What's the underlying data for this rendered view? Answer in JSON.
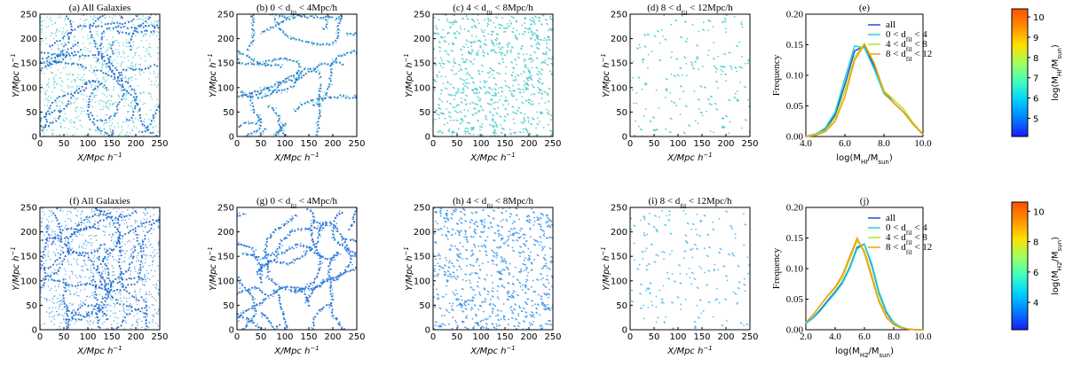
{
  "chart_data": [
    {
      "type": "map",
      "title": [
        "(a) All Galaxies"
      ],
      "xlabel": [
        "X/Mpc h",
        "−1"
      ],
      "ylabel": [
        "Y/Mpc h",
        "−1"
      ],
      "xlim": [
        0,
        250
      ],
      "ylim": [
        0,
        250
      ],
      "xticks": [
        0,
        50,
        100,
        150,
        200,
        250
      ],
      "yticks": [
        0,
        50,
        100,
        150,
        200,
        250
      ],
      "color": "#3cc4c8"
    },
    {
      "type": "map",
      "title": [
        "(b) 0 <  d",
        "fil",
        "  < 4Mpc/h"
      ],
      "xlabel": [
        "X/Mpc h",
        "−1"
      ],
      "ylabel": [
        "Y/Mpc h",
        "−1"
      ],
      "xlim": [
        0,
        250
      ],
      "ylim": [
        0,
        250
      ],
      "xticks": [
        0,
        50,
        100,
        150,
        200,
        250
      ],
      "yticks": [
        0,
        50,
        100,
        150,
        200,
        250
      ],
      "color": "#3cc4c8"
    },
    {
      "type": "map",
      "title": [
        "(c) 4 <  d",
        "fil",
        "  < 8Mpc/h"
      ],
      "xlabel": [
        "X/Mpc h",
        "−1"
      ],
      "ylabel": [
        "Y/Mpc h",
        "−1"
      ],
      "xlim": [
        0,
        250
      ],
      "ylim": [
        0,
        250
      ],
      "xticks": [
        0,
        50,
        100,
        150,
        200,
        250
      ],
      "yticks": [
        0,
        50,
        100,
        150,
        200,
        250
      ],
      "color": "#3cc4c8"
    },
    {
      "type": "map",
      "title": [
        "(d) 8 <  d",
        "fil",
        "  < 12Mpc/h"
      ],
      "xlabel": [
        "X/Mpc h",
        "−1"
      ],
      "ylabel": [
        "Y/Mpc h",
        "−1"
      ],
      "xlim": [
        0,
        250
      ],
      "ylim": [
        0,
        250
      ],
      "xticks": [
        0,
        50,
        100,
        150,
        200,
        250
      ],
      "yticks": [
        0,
        50,
        100,
        150,
        200,
        250
      ],
      "color": "#3cc4c8"
    },
    {
      "type": "line",
      "title": [
        "(e)"
      ],
      "xlabel": [
        "log(M",
        "HI",
        "/M",
        "sun",
        ")"
      ],
      "ylabel": [
        "Frequency"
      ],
      "x": [
        4,
        4.5,
        5,
        5.5,
        6,
        6.5,
        7,
        7.5,
        8,
        8.5,
        9,
        9.5,
        10
      ],
      "series": [
        {
          "name": [
            "all"
          ],
          "color": "#1f4fd8",
          "values": [
            0,
            0.004,
            0.012,
            0.035,
            0.085,
            0.14,
            0.148,
            0.115,
            0.075,
            0.055,
            0.04,
            0.02,
            0.003
          ]
        },
        {
          "name": [
            "0 <  d",
            "fil",
            "  < 4"
          ],
          "color": "#22d3d3",
          "values": [
            0,
            0.004,
            0.014,
            0.04,
            0.095,
            0.148,
            0.145,
            0.11,
            0.07,
            0.055,
            0.04,
            0.02,
            0.003
          ]
        },
        {
          "name": [
            "4 <  d",
            "fil",
            "  < 8"
          ],
          "color": "#b5e61d",
          "values": [
            0,
            0.003,
            0.01,
            0.03,
            0.075,
            0.13,
            0.152,
            0.12,
            0.075,
            0.06,
            0.045,
            0.022,
            0.004
          ]
        },
        {
          "name": [
            "8 <  d",
            "fil",
            "  < 12"
          ],
          "color": "#f39c12",
          "values": [
            0,
            0.002,
            0.008,
            0.025,
            0.065,
            0.125,
            0.15,
            0.12,
            0.072,
            0.055,
            0.04,
            0.02,
            0.003
          ]
        }
      ],
      "xlim": [
        4,
        10
      ],
      "ylim": [
        0,
        0.2
      ],
      "xticks": [
        {
          "value": 4,
          "label": "4.0"
        },
        {
          "value": 6,
          "label": "6.0"
        },
        {
          "value": 8,
          "label": "8.0"
        },
        {
          "value": 10,
          "label": "10.0"
        }
      ],
      "yticks": [
        {
          "value": 0,
          "label": "0.00"
        },
        0.05,
        {
          "value": 0.1,
          "label": "0.10"
        },
        0.15,
        {
          "value": 0.2,
          "label": "0.20"
        }
      ],
      "legend": "upper right"
    },
    {
      "type": "colorbar",
      "label": [
        "log(M",
        "HI",
        "/M",
        "sun",
        ")"
      ],
      "ylim": [
        4.1,
        10.4
      ],
      "yticks": [
        5,
        6,
        7,
        8,
        9,
        10
      ],
      "colors": [
        "#1a1aff",
        "#0080ff",
        "#00d0ff",
        "#40ffc0",
        "#a0ff60",
        "#ffe000",
        "#ff9000",
        "#ff5000"
      ]
    },
    {
      "type": "map",
      "title": [
        "(f) All Galaxies"
      ],
      "xlabel": [
        "X/Mpc h",
        "−1"
      ],
      "ylabel": [
        "Y/Mpc h",
        "−1"
      ],
      "xlim": [
        0,
        250
      ],
      "ylim": [
        0,
        250
      ],
      "xticks": [
        0,
        50,
        100,
        150,
        200,
        250
      ],
      "yticks": [
        0,
        50,
        100,
        150,
        200,
        250
      ],
      "color": "#2e8fe8"
    },
    {
      "type": "map",
      "title": [
        "(g) 0 <  d",
        "fil",
        "  < 4Mpc/h"
      ],
      "xlabel": [
        "X/Mpc h",
        "−1"
      ],
      "ylabel": [
        "Y/Mpc h",
        "−1"
      ],
      "xlim": [
        0,
        250
      ],
      "ylim": [
        0,
        250
      ],
      "xticks": [
        0,
        50,
        100,
        150,
        200,
        250
      ],
      "yticks": [
        0,
        50,
        100,
        150,
        200,
        250
      ],
      "color": "#2e8fe8"
    },
    {
      "type": "map",
      "title": [
        "(h) 4 <  d",
        "fil",
        "  < 8Mpc/h"
      ],
      "xlabel": [
        "X/Mpc h",
        "−1"
      ],
      "ylabel": [
        "Y/Mpc h",
        "−1"
      ],
      "xlim": [
        0,
        250
      ],
      "ylim": [
        0,
        250
      ],
      "xticks": [
        0,
        50,
        100,
        150,
        200,
        250
      ],
      "yticks": [
        0,
        50,
        100,
        150,
        200,
        250
      ],
      "color": "#2e8fe8"
    },
    {
      "type": "map",
      "title": [
        "(i) 8 <  d",
        "fil",
        "  < 12Mpc/h"
      ],
      "xlabel": [
        "X/Mpc h",
        "−1"
      ],
      "ylabel": [
        "Y/Mpc h",
        "−1"
      ],
      "xlim": [
        0,
        250
      ],
      "ylim": [
        0,
        250
      ],
      "xticks": [
        0,
        50,
        100,
        150,
        200,
        250
      ],
      "yticks": [
        0,
        50,
        100,
        150,
        200,
        250
      ],
      "color": "#3cb4e8"
    },
    {
      "type": "line",
      "title": [
        "(j)"
      ],
      "xlabel": [
        "log(M",
        "H2",
        "/M",
        "sun",
        ")"
      ],
      "ylabel": [
        "Frequency"
      ],
      "x": [
        2,
        2.5,
        3,
        3.5,
        4,
        4.5,
        5,
        5.5,
        6,
        6.5,
        7,
        7.5,
        8,
        8.5,
        9,
        9.5,
        10
      ],
      "series": [
        {
          "name": [
            "all"
          ],
          "color": "#1f4fd8",
          "values": [
            0.01,
            0.02,
            0.033,
            0.048,
            0.062,
            0.078,
            0.102,
            0.135,
            0.14,
            0.105,
            0.06,
            0.028,
            0.011,
            0.004,
            0.001,
            0,
            0
          ]
        },
        {
          "name": [
            "0 <  d",
            "fil",
            "  < 4"
          ],
          "color": "#22d3d3",
          "values": [
            0.01,
            0.019,
            0.031,
            0.046,
            0.06,
            0.076,
            0.1,
            0.132,
            0.14,
            0.108,
            0.062,
            0.03,
            0.012,
            0.004,
            0.001,
            0,
            0
          ]
        },
        {
          "name": [
            "4 <  d",
            "fil",
            "  < 8"
          ],
          "color": "#b5e61d",
          "values": [
            0.012,
            0.024,
            0.04,
            0.055,
            0.068,
            0.085,
            0.115,
            0.145,
            0.13,
            0.09,
            0.05,
            0.022,
            0.009,
            0.003,
            0.001,
            0,
            0
          ]
        },
        {
          "name": [
            "8 <  d",
            "fil",
            "  < 12"
          ],
          "color": "#f39c12",
          "values": [
            0.012,
            0.025,
            0.04,
            0.056,
            0.07,
            0.09,
            0.12,
            0.15,
            0.125,
            0.085,
            0.045,
            0.02,
            0.008,
            0.003,
            0.001,
            0,
            0
          ]
        }
      ],
      "xlim": [
        2,
        10
      ],
      "ylim": [
        0,
        0.2
      ],
      "xticks": [
        {
          "value": 2,
          "label": "2.0"
        },
        {
          "value": 4,
          "label": "4.0"
        },
        {
          "value": 6,
          "label": "6.0"
        },
        {
          "value": 8,
          "label": "8.0"
        },
        {
          "value": 10,
          "label": "10.0"
        }
      ],
      "yticks": [
        {
          "value": 0,
          "label": "0.00"
        },
        0.05,
        {
          "value": 0.1,
          "label": "0.10"
        },
        0.15,
        {
          "value": 0.2,
          "label": "0.20"
        }
      ],
      "legend": "upper right"
    },
    {
      "type": "colorbar",
      "label": [
        "log(M",
        "H2",
        "/M",
        "sun",
        ")"
      ],
      "ylim": [
        2.2,
        10.6
      ],
      "yticks": [
        4,
        6,
        8,
        10
      ],
      "colors": [
        "#1a1aff",
        "#0080ff",
        "#00d0ff",
        "#40ffc0",
        "#a0ff60",
        "#ffe000",
        "#ff9000",
        "#ff5000"
      ]
    }
  ]
}
